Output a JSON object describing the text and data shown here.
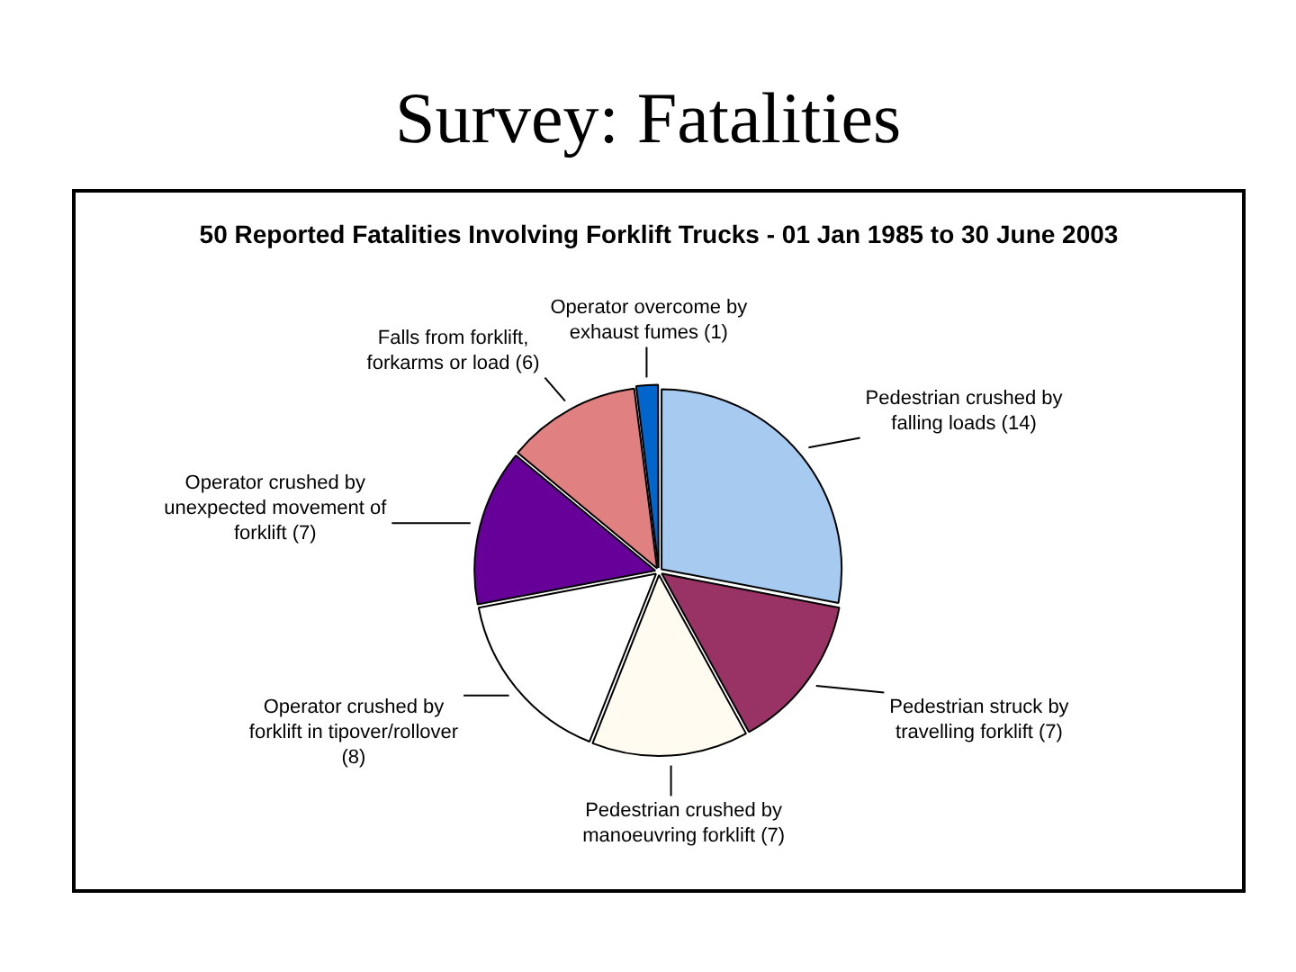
{
  "chart_data": {
    "type": "pie",
    "title": "Survey: Fatalities",
    "subtitle": "50 Reported Fatalities Involving Forklift Trucks - 01 Jan 1985 to 30 June 2003",
    "categories": [
      "Pedestrian crushed by falling loads (14)",
      "Pedestrian struck by travelling forklift (7)",
      "Pedestrian crushed by manoeuvring forklift (7)",
      "Operator crushed by forklift in tipover/rollover (8)",
      "Operator crushed by unexpected movement of forklift (7)",
      "Falls from forklift, forkarms or load (6)",
      "Operator overcome by exhaust fumes (1)"
    ],
    "values": [
      14,
      7,
      7,
      8,
      7,
      6,
      1
    ],
    "colors": [
      "#a6caf0",
      "#993366",
      "#fffbf0",
      "#ffffff",
      "#660099",
      "#e08080",
      "#0066cc"
    ]
  }
}
